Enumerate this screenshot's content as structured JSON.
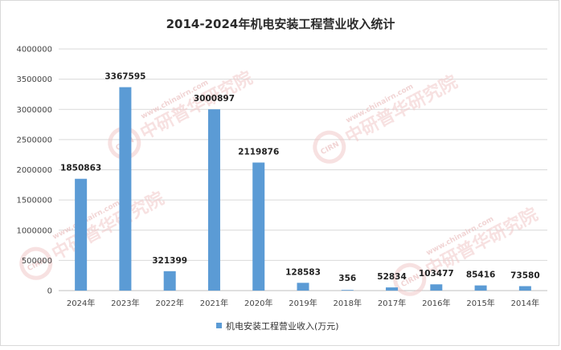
{
  "chart_data": {
    "type": "bar",
    "title": "2014-2024年机电安装工程营业收入统计",
    "xlabel": "",
    "ylabel": "",
    "categories": [
      "2024年",
      "2023年",
      "2022年",
      "2021年",
      "2020年",
      "2019年",
      "2018年",
      "2017年",
      "2016年",
      "2015年",
      "2014年"
    ],
    "series": [
      {
        "name": "机电安装工程营业收入(万元)",
        "values": [
          1850863,
          3367595,
          321399,
          3000897,
          2119876,
          128583,
          356,
          52834,
          103477,
          85416,
          73580
        ]
      }
    ],
    "ylim": [
      0,
      4000000
    ],
    "yticks": [
      0,
      500000,
      1000000,
      1500000,
      2000000,
      2500000,
      3000000,
      3500000,
      4000000
    ],
    "grid": true,
    "legend": "bottom",
    "bar_color": "#5b9bd5"
  },
  "watermark": {
    "logo_text": "CIRN",
    "name_cn": "中研普华研究院",
    "url": "www.chinairn.com"
  }
}
